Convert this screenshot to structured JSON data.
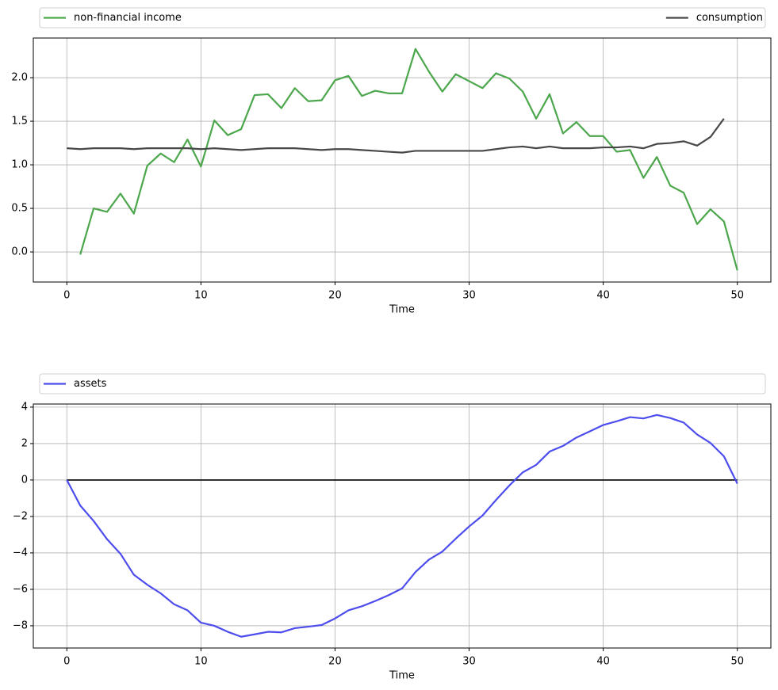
{
  "chart_data": [
    {
      "type": "line",
      "xlabel": "Time",
      "grid": true,
      "legend": "above",
      "x": [
        0,
        1,
        2,
        3,
        4,
        5,
        6,
        7,
        8,
        9,
        10,
        11,
        12,
        13,
        14,
        15,
        16,
        17,
        18,
        19,
        20,
        21,
        22,
        23,
        24,
        25,
        26,
        27,
        28,
        29,
        30,
        31,
        32,
        33,
        34,
        35,
        36,
        37,
        38,
        39,
        40,
        41,
        42,
        43,
        44,
        45,
        46,
        47,
        48,
        49,
        50
      ],
      "xlim": [
        -2.5,
        52.5
      ],
      "xticks": [
        0,
        10,
        20,
        30,
        40,
        50
      ],
      "ylim": [
        -0.345,
        2.455
      ],
      "yticks": [
        {
          "value": 0,
          "label": "0.0"
        },
        {
          "value": 0.5,
          "label": "0.5"
        },
        {
          "value": 1,
          "label": "1.0"
        },
        {
          "value": 1.5,
          "label": "1.5"
        },
        {
          "value": 2,
          "label": "2.0"
        }
      ],
      "series": [
        {
          "name": "non-financial income",
          "color": "#4ca64c",
          "values": [
            null,
            -0.03,
            0.5,
            0.46,
            0.67,
            0.44,
            0.99,
            1.13,
            1.03,
            1.29,
            0.98,
            1.51,
            1.34,
            1.41,
            1.8,
            1.81,
            1.65,
            1.88,
            1.73,
            1.74,
            1.97,
            2.02,
            1.79,
            1.85,
            1.82,
            1.82,
            2.33,
            2.07,
            1.84,
            2.04,
            1.96,
            1.88,
            2.05,
            1.99,
            1.84,
            1.53,
            1.81,
            1.36,
            1.49,
            1.33,
            1.33,
            1.15,
            1.17,
            0.85,
            1.09,
            0.76,
            0.68,
            0.32,
            0.49,
            0.35,
            -0.21
          ]
        },
        {
          "name": "consumption",
          "color": "#474747",
          "values": [
            1.19,
            1.18,
            1.19,
            1.19,
            1.19,
            1.18,
            1.19,
            1.19,
            1.19,
            1.19,
            1.18,
            1.19,
            1.18,
            1.17,
            1.18,
            1.19,
            1.19,
            1.19,
            1.18,
            1.17,
            1.18,
            1.18,
            1.17,
            1.16,
            1.15,
            1.14,
            1.16,
            1.16,
            1.16,
            1.16,
            1.16,
            1.16,
            1.18,
            1.2,
            1.21,
            1.19,
            1.21,
            1.19,
            1.19,
            1.19,
            1.2,
            1.2,
            1.21,
            1.19,
            1.24,
            1.25,
            1.27,
            1.22,
            1.32,
            1.53,
            null
          ]
        }
      ]
    },
    {
      "type": "line",
      "xlabel": "Time",
      "grid": true,
      "legend": "above",
      "x": [
        0,
        1,
        2,
        3,
        4,
        5,
        6,
        7,
        8,
        9,
        10,
        11,
        12,
        13,
        14,
        15,
        16,
        17,
        18,
        19,
        20,
        21,
        22,
        23,
        24,
        25,
        26,
        27,
        28,
        29,
        30,
        31,
        32,
        33,
        34,
        35,
        36,
        37,
        38,
        39,
        40,
        41,
        42,
        43,
        44,
        45,
        46,
        47,
        48,
        49,
        50
      ],
      "xlim": [
        -2.5,
        52.5
      ],
      "xticks": [
        0,
        10,
        20,
        30,
        40,
        50
      ],
      "ylim": [
        -9.22,
        4.17
      ],
      "yticks": [
        {
          "value": -8,
          "label": "−8"
        },
        {
          "value": -6,
          "label": "−6"
        },
        {
          "value": -4,
          "label": "−4"
        },
        {
          "value": -2,
          "label": "−2"
        },
        0,
        2,
        4
      ],
      "hline": 0,
      "hline_color": "#000000",
      "series": [
        {
          "name": "assets",
          "color": "#4d4dee",
          "values": [
            0,
            -1.4,
            -2.25,
            -3.25,
            -4.05,
            -5.2,
            -5.75,
            -6.22,
            -6.82,
            -7.15,
            -7.83,
            -8.0,
            -8.33,
            -8.6,
            -8.47,
            -8.33,
            -8.36,
            -8.13,
            -8.05,
            -7.96,
            -7.6,
            -7.15,
            -6.93,
            -6.64,
            -6.32,
            -5.95,
            -5.05,
            -4.37,
            -3.93,
            -3.22,
            -2.55,
            -1.95,
            -1.1,
            -0.3,
            0.42,
            0.83,
            1.56,
            1.87,
            2.33,
            2.67,
            3.02,
            3.22,
            3.45,
            3.38,
            3.57,
            3.4,
            3.15,
            2.5,
            2.03,
            1.3,
            -0.2
          ]
        }
      ]
    }
  ]
}
